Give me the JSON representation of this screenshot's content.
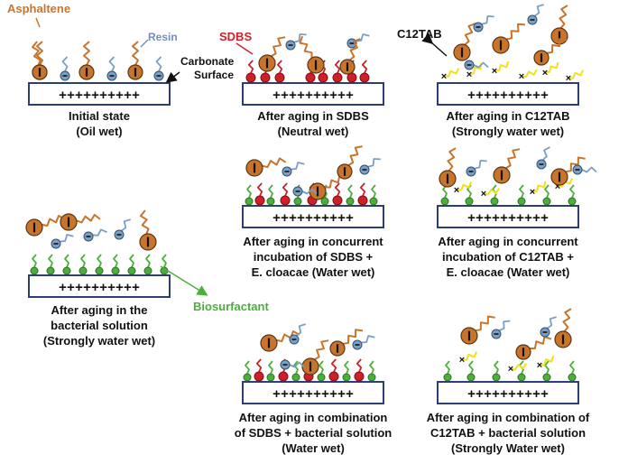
{
  "labels": {
    "asphaltene": "Asphaltene",
    "resin": "Resin",
    "sdbs": "SDBS",
    "c12tab": "C12TAB",
    "carbonate_surface_line1": "Carbonate",
    "carbonate_surface_line2": "Surface",
    "biosurfactant": "Biosurfactant"
  },
  "surface_charges": "++++++++++",
  "colors": {
    "asphaltene": "#c8742a",
    "resin": "#7a9fc4",
    "sdbs": "#d11f2a",
    "c12tab": "#f2e01a",
    "biosurfactant": "#4caf3c",
    "surface_border": "#2c3e73"
  },
  "panels": [
    {
      "id": "initial",
      "caption": [
        "Initial state",
        "(Oil wet)"
      ]
    },
    {
      "id": "sdbs",
      "caption": [
        "After aging in SDBS",
        "(Neutral wet)"
      ]
    },
    {
      "id": "c12tab",
      "caption": [
        "After aging in C12TAB",
        "(Strongly water wet)"
      ]
    },
    {
      "id": "sdbs-ecloacae",
      "caption": [
        "After aging in concurrent",
        "incubation of SDBS +",
        "E. cloacae (Water wet)"
      ]
    },
    {
      "id": "c12tab-ecloacae",
      "caption": [
        "After aging in concurrent",
        "incubation of C12TAB +",
        "E. cloacae (Water wet)"
      ]
    },
    {
      "id": "bacterial",
      "caption": [
        "After aging in the",
        "bacterial solution",
        "(Strongly water wet)"
      ]
    },
    {
      "id": "sdbs-bacterial",
      "caption": [
        "After aging in combination",
        "of SDBS + bacterial solution",
        "(Water wet)"
      ]
    },
    {
      "id": "c12tab-bacterial",
      "caption": [
        "After aging in combination of",
        "C12TAB + bacterial solution",
        "(Strongly Water wet)"
      ]
    }
  ]
}
